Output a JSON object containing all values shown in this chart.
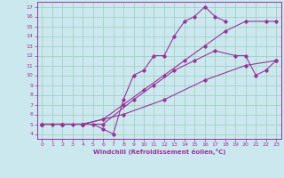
{
  "background_color": "#cce8ef",
  "line_color": "#993399",
  "grid_color": "#99ccbb",
  "xlabel": "Windchill (Refroidissement éolien,°C)",
  "xlim": [
    -0.5,
    23.5
  ],
  "ylim": [
    3.5,
    17.5
  ],
  "yticks": [
    4,
    5,
    6,
    7,
    8,
    9,
    10,
    11,
    12,
    13,
    14,
    15,
    16,
    17
  ],
  "xticks": [
    0,
    1,
    2,
    3,
    4,
    5,
    6,
    7,
    8,
    9,
    10,
    11,
    12,
    13,
    14,
    15,
    16,
    17,
    18,
    19,
    20,
    21,
    22,
    23
  ],
  "lines": [
    {
      "x": [
        0,
        1,
        2,
        3,
        4,
        5,
        6,
        7,
        8,
        9,
        10,
        11,
        12,
        13,
        14,
        15,
        16,
        17,
        18
      ],
      "y": [
        5,
        5,
        5,
        5,
        5,
        5,
        4.5,
        4,
        7.5,
        10,
        10.5,
        12,
        12,
        14,
        15.5,
        16,
        17,
        16,
        15.5
      ]
    },
    {
      "x": [
        0,
        2,
        4,
        6,
        8,
        10,
        12,
        14,
        16,
        18,
        20,
        22,
        23
      ],
      "y": [
        5,
        5,
        5,
        5.5,
        7,
        8.5,
        10,
        11.5,
        13,
        14.5,
        15.5,
        15.5,
        15.5
      ]
    },
    {
      "x": [
        0,
        2,
        4,
        6,
        9,
        11,
        13,
        15,
        17,
        19,
        20,
        21,
        22,
        23
      ],
      "y": [
        5,
        5,
        5,
        5,
        7.5,
        9,
        10.5,
        11.5,
        12.5,
        12,
        12,
        10,
        10.5,
        11.5
      ]
    },
    {
      "x": [
        0,
        4,
        8,
        12,
        16,
        20,
        23
      ],
      "y": [
        5,
        5,
        6,
        7.5,
        9.5,
        11,
        11.5
      ]
    }
  ]
}
